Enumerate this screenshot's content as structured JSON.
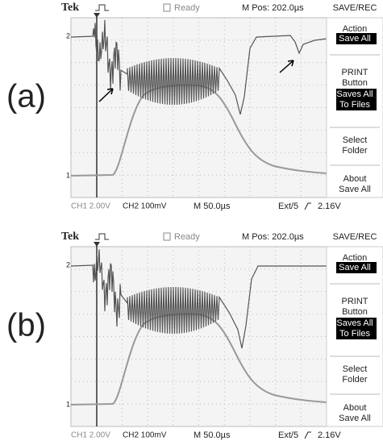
{
  "panels": [
    {
      "label": "(a)",
      "brand": "Tek",
      "status": "Ready",
      "position": "M Pos: 202.0µs",
      "menu_title": "SAVE/REC",
      "menu": [
        [
          "Action",
          "Save All"
        ],
        [
          "PRINT",
          "Button",
          "Saves All",
          "To Files"
        ],
        [
          "Select",
          "Folder"
        ],
        [
          "About",
          "Save All"
        ]
      ],
      "ch1": "CH1  2.00V",
      "ch2": "CH2  100mV",
      "timebase": "M 50.0µs",
      "trigger": "Ext/5",
      "trigger_level": "2.16V",
      "markers": [
        "2",
        "1"
      ]
    },
    {
      "label": "(b)",
      "brand": "Tek",
      "status": "Ready",
      "position": "M Pos: 202.0µs",
      "menu_title": "SAVE/REC",
      "menu": [
        [
          "Action",
          "Save All"
        ],
        [
          "PRINT",
          "Button",
          "Saves All",
          "To Files"
        ],
        [
          "Select",
          "Folder"
        ],
        [
          "About",
          "Save All"
        ]
      ],
      "ch1": "CH1  2.00V",
      "ch2": "CH2  100mV",
      "timebase": "M 50.0µs",
      "trigger": "Ext/5",
      "trigger_level": "2.16V",
      "markers": [
        "2",
        "1"
      ]
    }
  ]
}
